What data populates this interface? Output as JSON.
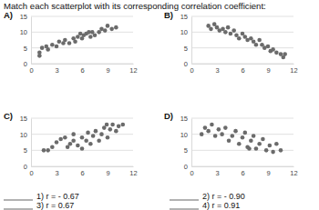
{
  "heading": "Match each scatterplot with its corresponding correlation coefficient:",
  "chart_data": [
    {
      "type": "scatter",
      "title": "A)",
      "color": "#6b6b6b",
      "grid": true,
      "marker": "circle",
      "xlim": [
        0,
        12
      ],
      "ylim": [
        0,
        15
      ],
      "xticks": [
        0,
        3,
        6,
        9,
        12
      ],
      "yticks": [
        0,
        5,
        10,
        15
      ],
      "x": [
        1,
        1,
        1.3,
        1.8,
        2,
        2.5,
        3,
        3.3,
        3.8,
        4,
        4.5,
        5,
        5.2,
        5.5,
        6,
        6.2,
        6.5,
        7,
        7.2,
        7.5,
        8,
        8.3,
        8.7,
        9,
        9.5,
        10,
        6.8,
        5.8
      ],
      "values": [
        2.5,
        3.5,
        5,
        5.5,
        4.5,
        6,
        5.5,
        7,
        6.5,
        7.5,
        6.5,
        8,
        7,
        8.5,
        8,
        9,
        9.5,
        8.5,
        10,
        9,
        10,
        11,
        10.5,
        12,
        11,
        11.5,
        10,
        9.5
      ]
    },
    {
      "type": "scatter",
      "title": "B)",
      "color": "#6b6b6b",
      "grid": true,
      "marker": "circle",
      "xlim": [
        0,
        12
      ],
      "ylim": [
        0,
        15
      ],
      "xticks": [
        0,
        3,
        6,
        9,
        12
      ],
      "yticks": [
        0,
        5,
        10,
        15
      ],
      "x": [
        2,
        2.3,
        2.7,
        3,
        3.3,
        3.7,
        4,
        4.3,
        4.6,
        5,
        5.3,
        5.6,
        6,
        6.3,
        6.6,
        7,
        7.3,
        7.6,
        8,
        8.3,
        8.6,
        9,
        9.3,
        9.6,
        10,
        10.5,
        10.8,
        11
      ],
      "values": [
        12,
        11,
        12.5,
        11.5,
        10.5,
        11,
        10,
        11.5,
        9.5,
        10.5,
        9,
        8,
        9.5,
        8.5,
        7.5,
        8,
        7,
        6,
        7.5,
        6,
        5,
        5.5,
        4,
        4.5,
        3.5,
        3,
        2,
        3
      ]
    },
    {
      "type": "scatter",
      "title": "C)",
      "color": "#6b6b6b",
      "grid": true,
      "marker": "circle",
      "xlim": [
        0,
        12
      ],
      "ylim": [
        0,
        15
      ],
      "xticks": [
        0,
        3,
        6,
        9,
        12
      ],
      "yticks": [
        0,
        5,
        10,
        15
      ],
      "x": [
        1.5,
        2,
        2.5,
        3,
        3.5,
        4,
        4.3,
        4.6,
        5,
        5,
        5.5,
        6,
        6,
        6.5,
        6.7,
        7,
        7.3,
        7.6,
        8,
        8.3,
        8.6,
        9,
        9.3,
        9.6,
        10,
        10.3,
        10.8,
        8.9
      ],
      "values": [
        5,
        5,
        6,
        7.5,
        8.5,
        9,
        6,
        7,
        8,
        10,
        6.5,
        5.5,
        9,
        8,
        10.5,
        7,
        9.5,
        11,
        8,
        10,
        12,
        9,
        11.5,
        13,
        11,
        12.5,
        13,
        13
      ]
    },
    {
      "type": "scatter",
      "title": "D)",
      "color": "#6b6b6b",
      "grid": true,
      "marker": "circle",
      "xlim": [
        0,
        12
      ],
      "ylim": [
        0,
        15
      ],
      "xticks": [
        0,
        3,
        6,
        9,
        12
      ],
      "yticks": [
        0,
        5,
        10,
        15
      ],
      "x": [
        1.2,
        1.6,
        2,
        2.4,
        2.8,
        3.2,
        3.6,
        4,
        4.4,
        4.8,
        5.2,
        5.6,
        6,
        6.3,
        6.6,
        7,
        7.3,
        7.6,
        8,
        8.4,
        8.8,
        9.2,
        9.6,
        10,
        10.5,
        6.8
      ],
      "values": [
        10,
        12,
        11,
        13,
        9.5,
        11.5,
        10,
        12,
        8,
        9.5,
        11,
        7,
        9,
        10.5,
        6,
        8,
        9.5,
        5.5,
        7,
        8.5,
        5,
        6.5,
        4.5,
        7,
        5,
        5.5
      ]
    }
  ],
  "options": [
    "1) r = - 0.67",
    "2) r = - 0.90",
    "3) r = 0.67",
    "4) r = 0.91"
  ]
}
